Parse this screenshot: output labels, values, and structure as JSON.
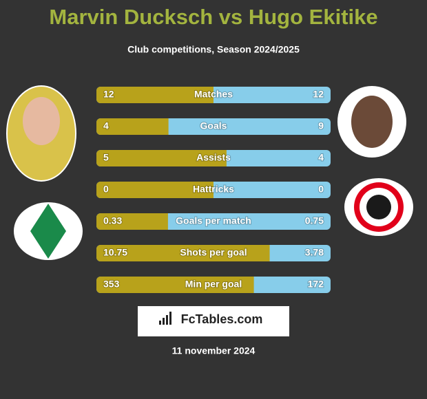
{
  "chart_data": {
    "type": "bar",
    "title": "Marvin Ducksch vs Hugo Ekitike",
    "subtitle": "Club competitions, Season 2024/2025",
    "categories": [
      "Matches",
      "Goals",
      "Assists",
      "Hattricks",
      "Goals per match",
      "Shots per goal",
      "Min per goal"
    ],
    "series": [
      {
        "color": "#b8a21b",
        "values": [
          12,
          4,
          5,
          0,
          0.33,
          10.75,
          353
        ]
      },
      {
        "color": "#87cdea",
        "values": [
          12,
          9,
          4,
          0,
          0.75,
          3.78,
          172
        ]
      }
    ],
    "brand": "FcTables.com",
    "date": "11 november 2024"
  }
}
